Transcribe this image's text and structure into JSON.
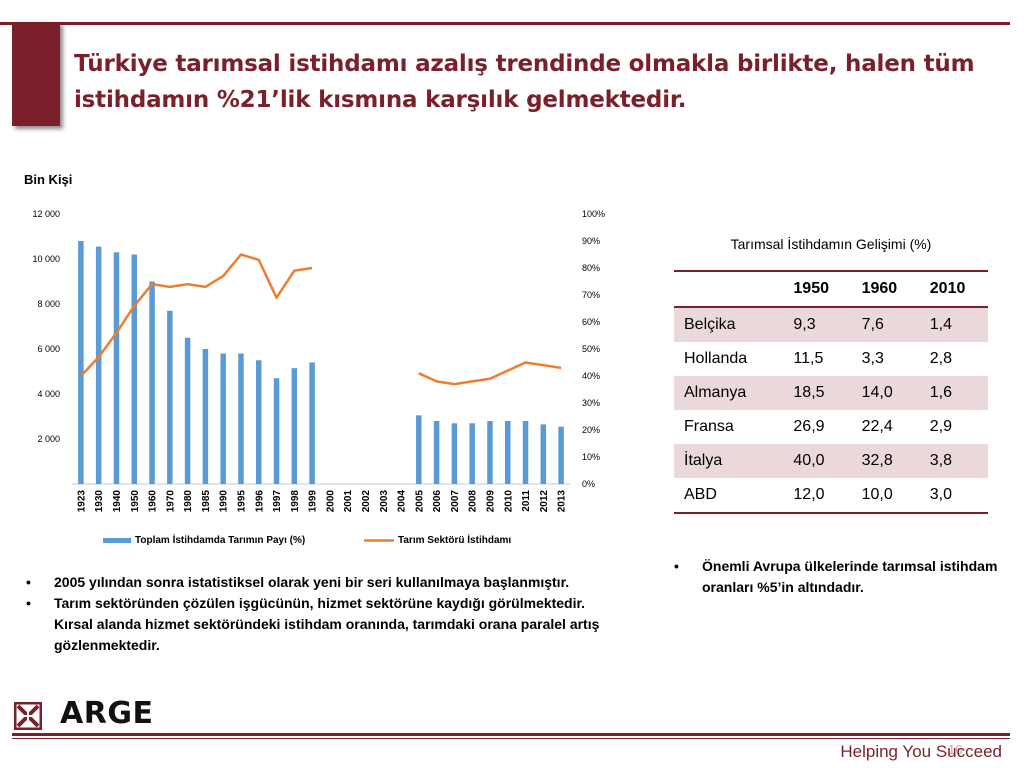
{
  "title": "Türkiye tarımsal istihdamı azalış trendinde olmakla birlikte, halen tüm istihdamın %21’lik kısmına karşılık gelmektedir.",
  "unit_label": "Bin  Kişi",
  "colors": {
    "brand": "#7b1f2a",
    "bar": "#5b9bd5",
    "line": "#ed7d31",
    "row_shade": "#ead8da"
  },
  "chart_data": {
    "type": "bar",
    "categories": [
      "1923",
      "1930",
      "1940",
      "1950",
      "1960",
      "1970",
      "1980",
      "1985",
      "1990",
      "1995",
      "1996",
      "1997",
      "1998",
      "1999",
      "2000",
      "2001",
      "2002",
      "2003",
      "2004",
      "2005",
      "2006",
      "2007",
      "2008",
      "2009",
      "2010",
      "2011",
      "2012",
      "2013"
    ],
    "left_axis": {
      "ylim": [
        0,
        12000
      ],
      "ticks": [
        "12 000",
        "10 000",
        "8 000",
        "6 000",
        "4 000",
        "2 000",
        ""
      ]
    },
    "right_axis": {
      "ylim": [
        0,
        100
      ],
      "ticks": [
        "100%",
        "90%",
        "80%",
        "70%",
        "60%",
        "50%",
        "40%",
        "30%",
        "20%",
        "10%",
        "0%"
      ]
    },
    "series": [
      {
        "name": "Toplam İstihdamda Tarımın Payı (%)",
        "type": "bar",
        "axis": "left",
        "values": [
          10800,
          10550,
          10300,
          10200,
          9000,
          7700,
          6500,
          6000,
          5800,
          5800,
          5500,
          4700,
          5150,
          5400,
          null,
          null,
          null,
          null,
          null,
          3050,
          2800,
          2700,
          2700,
          2800,
          2800,
          2800,
          2650,
          2550
        ]
      },
      {
        "name": "Tarım Sektörü İstihdamı",
        "type": "line",
        "axis": "right",
        "values": [
          40,
          47,
          56,
          66,
          74,
          73,
          74,
          73,
          77,
          85,
          83,
          69,
          79,
          80,
          null,
          null,
          null,
          null,
          null,
          41,
          38,
          37,
          38,
          39,
          42,
          45,
          44,
          43
        ]
      }
    ],
    "legend_position": "bottom"
  },
  "table": {
    "title": "Tarımsal İstihdamın Gelişimi (%)",
    "headers": [
      "",
      "1950",
      "1960",
      "2010"
    ],
    "rows": [
      [
        "Belçika",
        "9,3",
        "7,6",
        "1,4"
      ],
      [
        "Hollanda",
        "11,5",
        "3,3",
        "2,8"
      ],
      [
        "Almanya",
        "18,5",
        "14,0",
        "1,6"
      ],
      [
        "Fransa",
        "26,9",
        "22,4",
        "2,9"
      ],
      [
        "İtalya",
        "40,0",
        "32,8",
        "3,8"
      ],
      [
        "ABD",
        "12,0",
        "10,0",
        "3,0"
      ]
    ]
  },
  "bullets_left": [
    "2005 yılından sonra istatistiksel olarak yeni bir seri kullanılmaya başlanmıştır.",
    "Tarım sektöründen çözülen işgücünün, hizmet sektörüne kaydığı görülmektedir. Kırsal alanda hizmet sektöründeki istihdam oranında, tarımdaki orana paralel artış gözlenmektedir."
  ],
  "bullets_right": [
    "Önemli Avrupa ülkelerinde tarımsal istihdam oranları %5’in altındadır."
  ],
  "logo_text": "ARGE",
  "footer_text": "Helping You Succeed",
  "page_number": "16"
}
